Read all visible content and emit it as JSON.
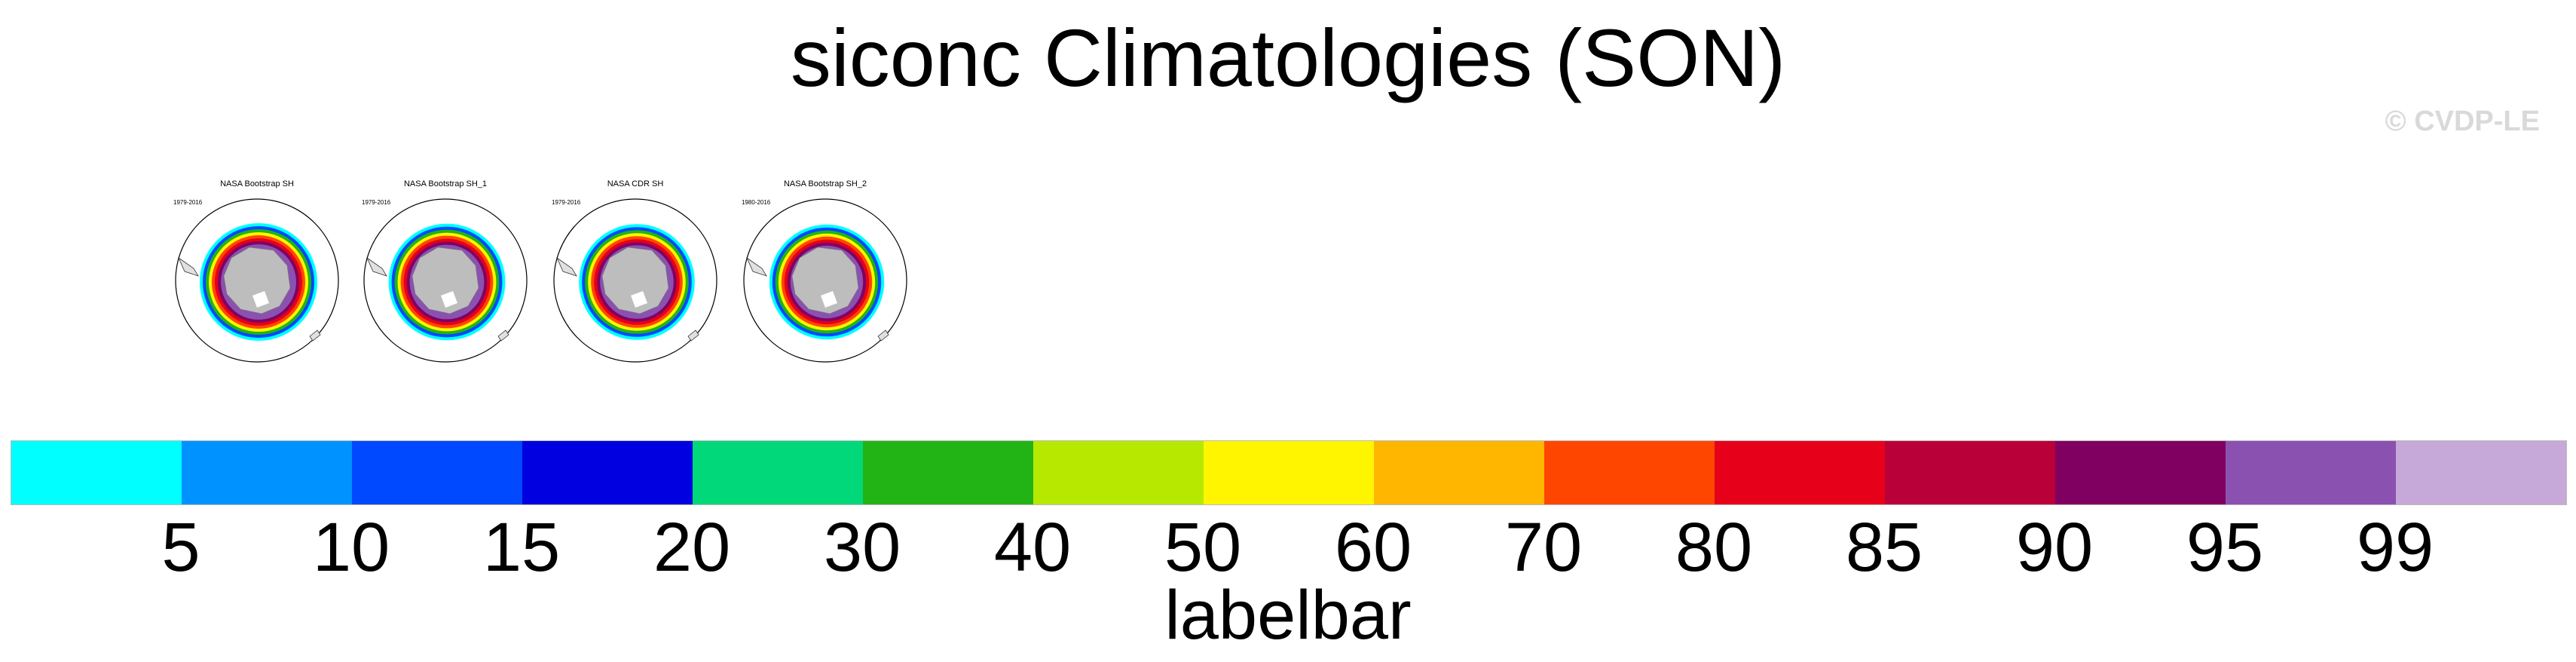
{
  "title": "siconc Climatologies (SON)",
  "watermark": "© CVDP-LE",
  "panels": [
    {
      "title": "NASA Bootstrap SH",
      "years": "1979-2016"
    },
    {
      "title": "NASA Bootstrap SH_1",
      "years": "1979-2016"
    },
    {
      "title": "NASA CDR SH",
      "years": "1979-2016"
    },
    {
      "title": "NASA Bootstrap SH_2",
      "years": "1980-2016"
    }
  ],
  "chart_data": {
    "type": "heatmap",
    "title": "siconc Climatologies (SON)",
    "projection": "south-polar-stereographic",
    "panels": [
      {
        "title": "NASA Bootstrap SH",
        "years": "1979-2016"
      },
      {
        "title": "NASA Bootstrap SH_1",
        "years": "1979-2016"
      },
      {
        "title": "NASA CDR SH",
        "years": "1979-2016"
      },
      {
        "title": "NASA Bootstrap SH_2",
        "years": "1980-2016"
      }
    ],
    "labelbar": {
      "label": "labelbar",
      "levels": [
        "5",
        "10",
        "15",
        "20",
        "30",
        "40",
        "50",
        "60",
        "70",
        "80",
        "85",
        "90",
        "95",
        "99"
      ],
      "colors": [
        "#00ffff",
        "#0093ff",
        "#0049ff",
        "#0000e0",
        "#00d87a",
        "#22b414",
        "#b7e900",
        "#fff500",
        "#ffb600",
        "#ff4600",
        "#e6001a",
        "#ba0038",
        "#800062",
        "#8b51b0",
        "#c6a9d8"
      ]
    }
  }
}
